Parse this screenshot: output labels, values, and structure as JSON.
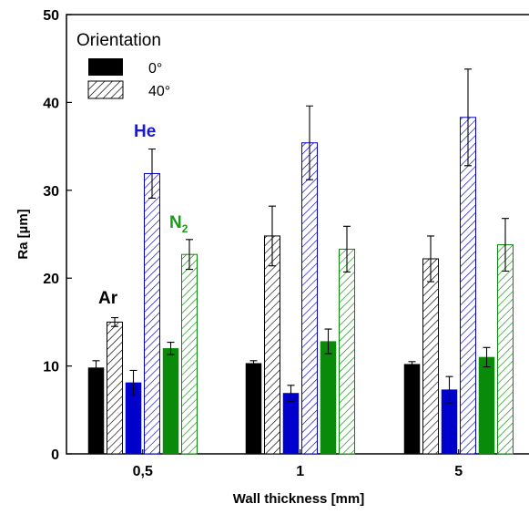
{
  "chart_data": {
    "type": "bar",
    "categories": [
      "0,5",
      "1",
      "5"
    ],
    "ylabel": "Ra [µm]",
    "xlabel": "Wall thickness [mm]",
    "ylim": [
      0,
      50
    ],
    "yticks": [
      "0",
      "10",
      "20",
      "30",
      "40",
      "50"
    ],
    "legend": {
      "title": "Orientation",
      "placement": "top-left",
      "entries": [
        {
          "label": "0°",
          "style": "solid"
        },
        {
          "label": "40°",
          "style": "hatched"
        }
      ]
    },
    "gas_labels": [
      {
        "text": "Ar",
        "color": "#000000"
      },
      {
        "text": "He",
        "color": "#1a1acc"
      },
      {
        "text": "N",
        "sub": "2",
        "color": "#1a9a1a"
      }
    ],
    "gas_colors": [
      "#000000",
      "#0000cc",
      "#0a8a0a"
    ],
    "series": [
      {
        "gas": "Ar",
        "orientation": "0°",
        "values": [
          9.8,
          10.3,
          10.2
        ],
        "errors": [
          0.8,
          0.3,
          0.3
        ]
      },
      {
        "gas": "Ar",
        "orientation": "40°",
        "values": [
          15.0,
          24.8,
          22.2
        ],
        "errors": [
          0.5,
          3.4,
          2.6
        ]
      },
      {
        "gas": "He",
        "orientation": "0°",
        "values": [
          8.1,
          6.9,
          7.3
        ],
        "errors": [
          1.4,
          0.9,
          1.5
        ]
      },
      {
        "gas": "He",
        "orientation": "40°",
        "values": [
          31.9,
          35.4,
          38.3
        ],
        "errors": [
          2.8,
          4.2,
          5.5
        ]
      },
      {
        "gas": "N2",
        "orientation": "0°",
        "values": [
          12.0,
          12.8,
          11.0
        ],
        "errors": [
          0.7,
          1.4,
          1.1
        ]
      },
      {
        "gas": "N2",
        "orientation": "40°",
        "values": [
          22.7,
          23.3,
          23.8
        ],
        "errors": [
          1.7,
          2.6,
          3.0
        ]
      }
    ]
  }
}
